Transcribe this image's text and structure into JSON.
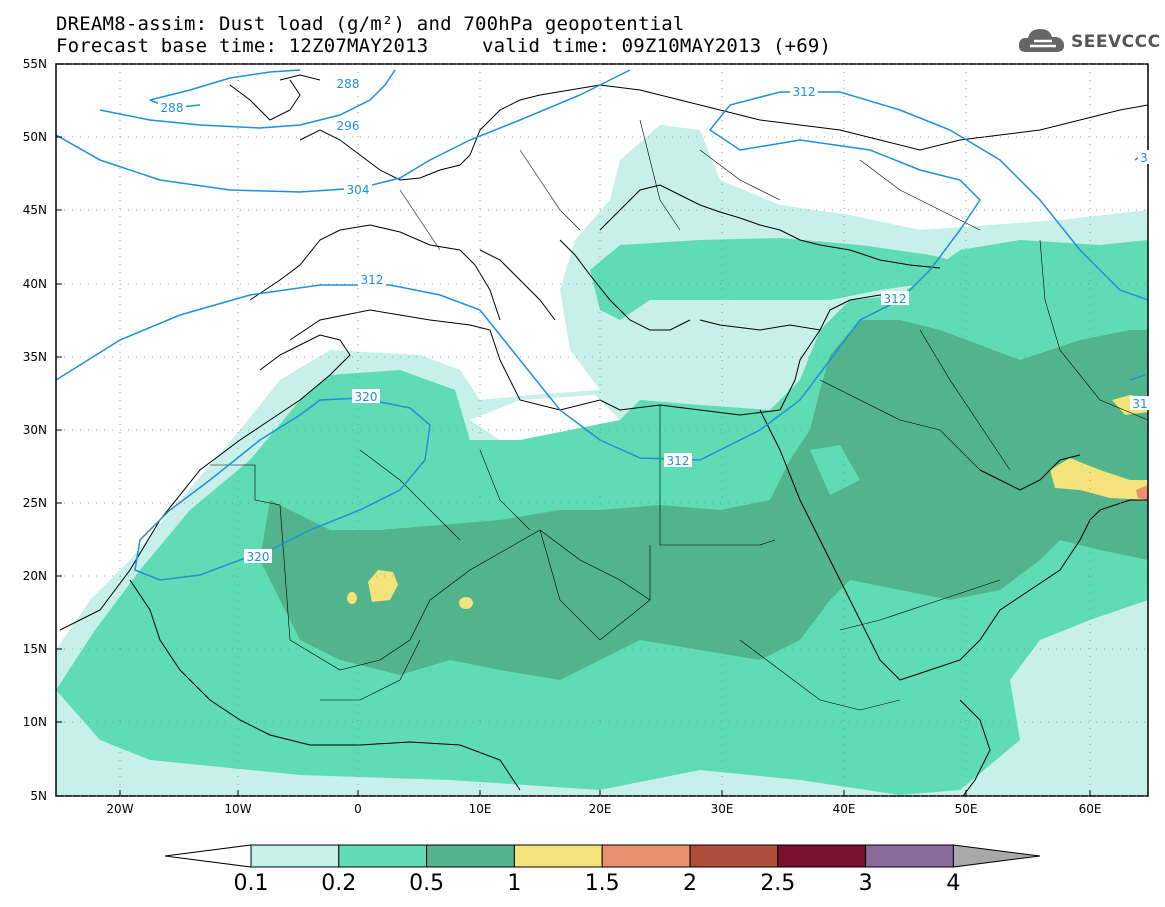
{
  "header": {
    "title_line1": "DREAM8-assim: Dust load (g/m²) and 700hPa geopotential",
    "title_line2": "Forecast base time: 12Z07MAY2013",
    "title_line3": "valid time: 09Z10MAY2013 (+69)"
  },
  "logo": {
    "text": "SEEVCCC",
    "icon": "cloud-icon"
  },
  "map": {
    "lon_labels": [
      "20W",
      "10W",
      "0",
      "10E",
      "20E",
      "30E",
      "40E",
      "50E",
      "60E"
    ],
    "lat_labels": [
      "55N",
      "50N",
      "45N",
      "40N",
      "35N",
      "30N",
      "25N",
      "20N",
      "15N",
      "10N",
      "5N"
    ],
    "contour_labels": [
      "288",
      "288",
      "296",
      "304",
      "312",
      "312",
      "312",
      "320",
      "320",
      "312",
      "31",
      "3"
    ]
  },
  "colorbar": {
    "labels": [
      "0.1",
      "0.2",
      "0.5",
      "1",
      "1.5",
      "2",
      "2.5",
      "3",
      "4"
    ],
    "colors": [
      "#c6f0e8",
      "#5fdcb4",
      "#52b48c",
      "#f3e37a",
      "#e89070",
      "#b04c3c",
      "#7a1030",
      "#8a6a9a",
      "#a8a8a8"
    ]
  },
  "colors": {
    "dust_light": "#c6f0e8",
    "dust_mid": "#5fdcb4",
    "dust_dark": "#52b48c",
    "dust_yellow": "#f3e37a",
    "dust_orange": "#e89070",
    "contour": "#1e90dc",
    "coastline": "#000000"
  }
}
